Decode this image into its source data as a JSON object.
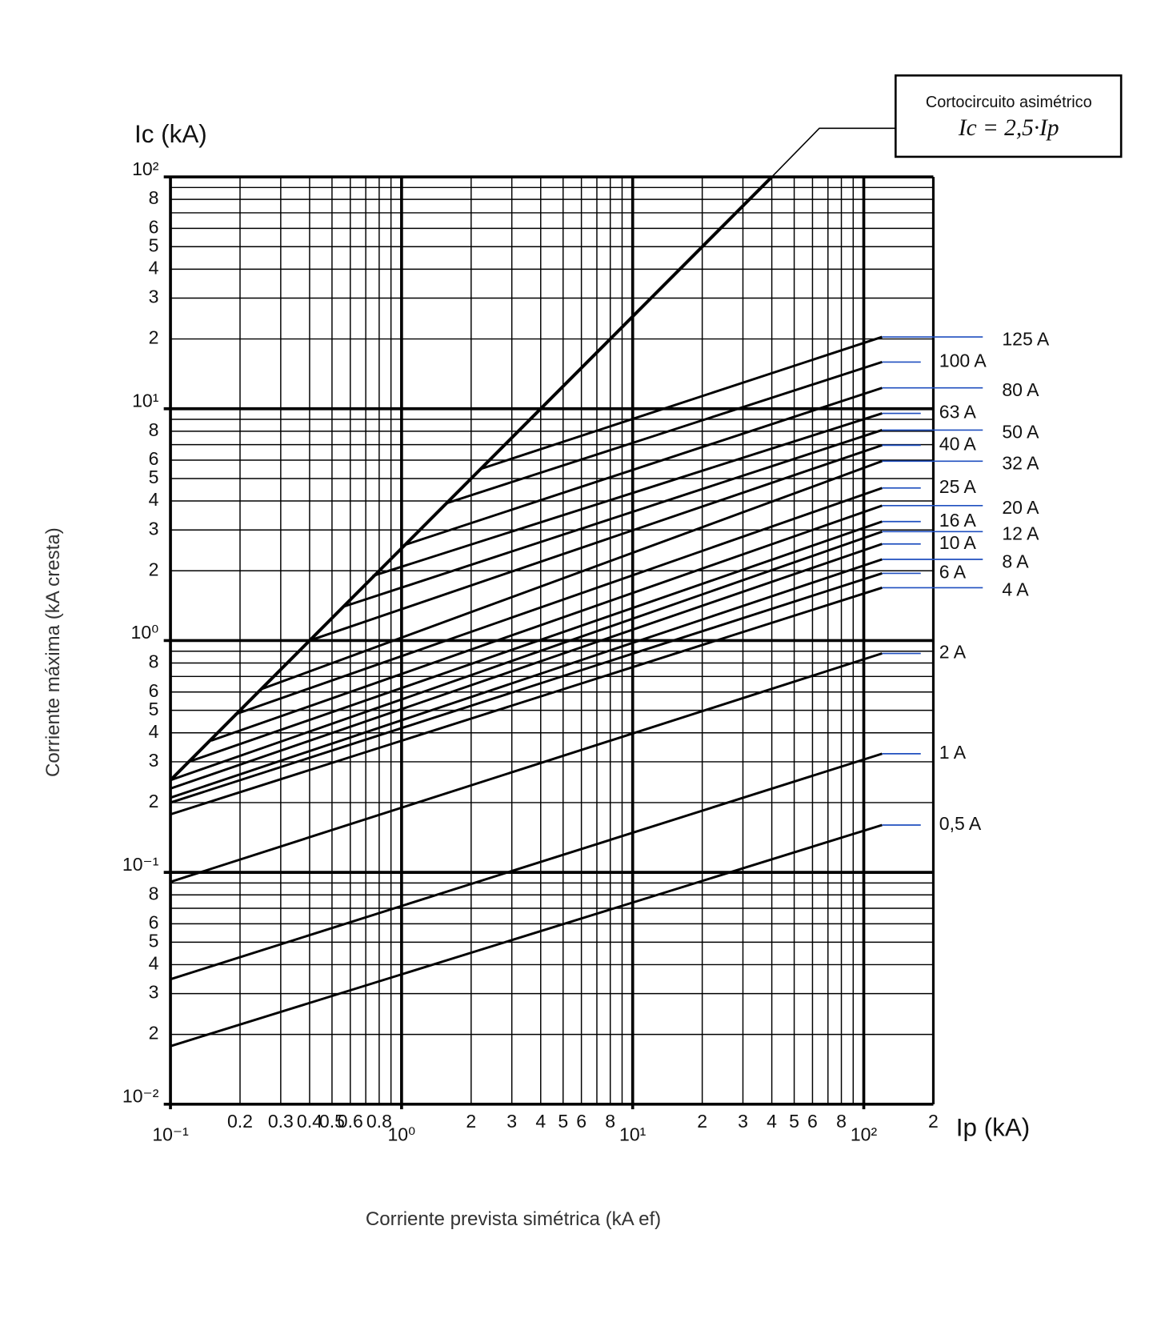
{
  "chart_data": {
    "type": "line",
    "y_title": "Ic (kA)",
    "x_title": "Ip (kA)",
    "y_label": "Corriente máxima (kA cresta)",
    "x_label": "Corriente prevista simétrica (kA ef)",
    "log_x": true,
    "log_y": true,
    "grid": true,
    "minor_grid": true,
    "color": "#000000",
    "leader_color": "#1f4fbf",
    "xlim": [
      0.1,
      200
    ],
    "ylim": [
      0.01,
      100
    ],
    "xticks": [
      {
        "value": 0.1,
        "label": "10⁻¹"
      },
      0.2,
      0.3,
      0.4,
      0.5,
      0.6,
      0.8,
      {
        "value": 1,
        "label": "10⁰"
      },
      2,
      3,
      4,
      5,
      6,
      8,
      {
        "value": 10,
        "label": "10¹"
      },
      {
        "value": 20,
        "label": "2"
      },
      {
        "value": 30,
        "label": "3"
      },
      {
        "value": 40,
        "label": "4"
      },
      {
        "value": 50,
        "label": "5"
      },
      {
        "value": 60,
        "label": "6"
      },
      {
        "value": 80,
        "label": "8"
      },
      {
        "value": 100,
        "label": "10²"
      },
      {
        "value": 200,
        "label": "2"
      }
    ],
    "yticks": [
      {
        "value": 0.01,
        "label": "10⁻²"
      },
      {
        "value": 0.02,
        "label": "2"
      },
      {
        "value": 0.03,
        "label": "3"
      },
      {
        "value": 0.04,
        "label": "4"
      },
      {
        "value": 0.05,
        "label": "5"
      },
      {
        "value": 0.06,
        "label": "6"
      },
      {
        "value": 0.08,
        "label": "8"
      },
      {
        "value": 0.1,
        "label": "10⁻¹"
      },
      {
        "value": 0.2,
        "label": "2"
      },
      {
        "value": 0.3,
        "label": "3"
      },
      {
        "value": 0.4,
        "label": "4"
      },
      {
        "value": 0.5,
        "label": "5"
      },
      {
        "value": 0.6,
        "label": "6"
      },
      {
        "value": 0.8,
        "label": "8"
      },
      {
        "value": 1,
        "label": "10⁰"
      },
      2,
      3,
      4,
      5,
      6,
      8,
      {
        "value": 10,
        "label": "10¹"
      },
      {
        "value": 20,
        "label": "2"
      },
      {
        "value": 30,
        "label": "3"
      },
      {
        "value": 40,
        "label": "4"
      },
      {
        "value": 50,
        "label": "5"
      },
      {
        "value": 60,
        "label": "6"
      },
      {
        "value": 80,
        "label": "8"
      },
      {
        "value": 100,
        "label": "10²"
      }
    ],
    "reference_line": {
      "label": "Cortocircuito asimétrico",
      "formula": "Ic = 2,5·Ip",
      "x": [
        0.1,
        40
      ],
      "values": [
        0.25,
        100
      ]
    },
    "series": [
      {
        "name": "125 A",
        "x": [
          2.2,
          120
        ],
        "values": [
          5.5,
          20.4
        ]
      },
      {
        "name": "100 A",
        "x": [
          1.55,
          120
        ],
        "values": [
          3.9,
          15.9
        ]
      },
      {
        "name": "80 A",
        "x": [
          1.05,
          120
        ],
        "values": [
          2.6,
          12.3
        ]
      },
      {
        "name": "63 A",
        "x": [
          0.75,
          120
        ],
        "values": [
          1.9,
          9.55
        ]
      },
      {
        "name": "50 A",
        "x": [
          0.56,
          120
        ],
        "values": [
          1.4,
          8.09
        ]
      },
      {
        "name": "40 A",
        "x": [
          0.4,
          120
        ],
        "values": [
          1.0,
          6.96
        ]
      },
      {
        "name": "32 A",
        "x": [
          0.25,
          120
        ],
        "values": [
          0.62,
          5.94
        ]
      },
      {
        "name": "25 A",
        "x": [
          0.19,
          120
        ],
        "values": [
          0.48,
          4.55
        ]
      },
      {
        "name": "20 A",
        "x": [
          0.15,
          120
        ],
        "values": [
          0.37,
          3.82
        ]
      },
      {
        "name": "16 A",
        "x": [
          0.12,
          120
        ],
        "values": [
          0.3,
          3.26
        ]
      },
      {
        "name": "12 A",
        "x": [
          0.1,
          120
        ],
        "values": [
          0.25,
          2.95
        ]
      },
      {
        "name": "10 A",
        "x": [
          0.1,
          120
        ],
        "values": [
          0.23,
          2.61
        ]
      },
      {
        "name": "8 A",
        "x": [
          0.1,
          120
        ],
        "values": [
          0.21,
          2.24
        ]
      },
      {
        "name": "6 A",
        "x": [
          0.1,
          120
        ],
        "values": [
          0.2,
          1.95
        ]
      },
      {
        "name": "4 A",
        "x": [
          0.1,
          120
        ],
        "values": [
          0.178,
          1.69
        ]
      },
      {
        "name": "2 A",
        "x": [
          0.1,
          120
        ],
        "values": [
          0.091,
          0.88
        ]
      },
      {
        "name": "1 A",
        "x": [
          0.1,
          120
        ],
        "values": [
          0.0346,
          0.325
        ]
      },
      {
        "name": "0,5 A",
        "x": [
          0.1,
          120
        ],
        "values": [
          0.0178,
          0.16
        ]
      }
    ]
  }
}
